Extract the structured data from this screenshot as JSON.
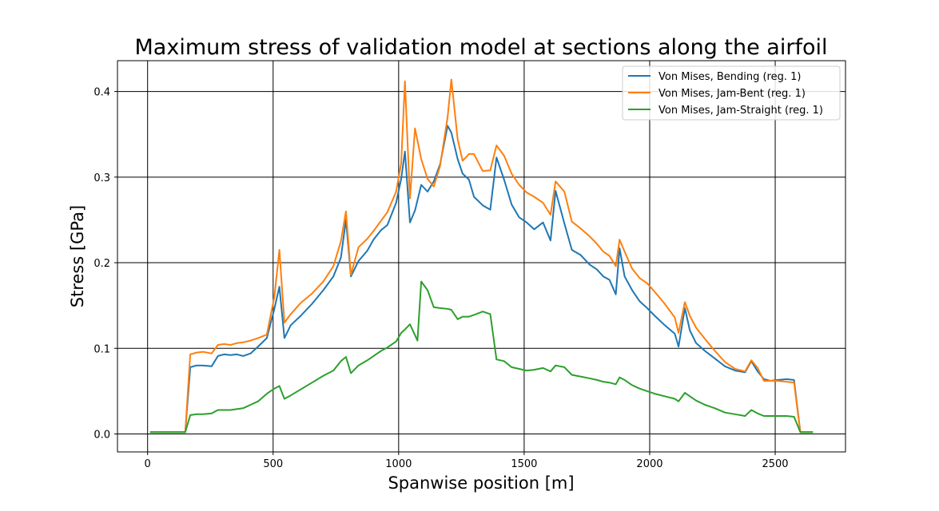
{
  "chart_data": {
    "type": "line",
    "title": "Maximum stress of validation model at sections along the airfoil",
    "xlabel": "Spanwise position [m]",
    "ylabel": "Stress [GPa]",
    "xlim": [
      -120,
      2780
    ],
    "ylim": [
      -0.021,
      0.436
    ],
    "xticks": [
      0,
      500,
      1000,
      1500,
      2000,
      2500
    ],
    "yticks": [
      0.0,
      0.1,
      0.2,
      0.3,
      0.4
    ],
    "xtick_labels": [
      "0",
      "500",
      "1000",
      "1500",
      "2000",
      "2500"
    ],
    "ytick_labels": [
      "0.0",
      "0.1",
      "0.2",
      "0.3",
      "0.4"
    ],
    "grid": true,
    "legend_position": "top-right",
    "series": [
      {
        "name": "Von Mises, Bending (reg. 1)",
        "color": "#1f77b4",
        "x": [
          10,
          60,
          100,
          150,
          170,
          195,
          220,
          255,
          280,
          305,
          330,
          355,
          380,
          410,
          440,
          475,
          505,
          525,
          545,
          570,
          610,
          655,
          700,
          740,
          770,
          790,
          810,
          840,
          875,
          900,
          930,
          955,
          990,
          1010,
          1025,
          1045,
          1065,
          1090,
          1115,
          1140,
          1165,
          1195,
          1210,
          1235,
          1255,
          1280,
          1300,
          1335,
          1365,
          1390,
          1420,
          1450,
          1480,
          1510,
          1540,
          1575,
          1605,
          1625,
          1660,
          1690,
          1725,
          1760,
          1790,
          1815,
          1840,
          1865,
          1880,
          1900,
          1930,
          1960,
          1990,
          2020,
          2060,
          2100,
          2115,
          2140,
          2160,
          2185,
          2220,
          2260,
          2300,
          2340,
          2380,
          2405,
          2430,
          2455,
          2480,
          2510,
          2545,
          2575,
          2600,
          2620,
          2650
        ],
        "values": [
          0.002,
          0.002,
          0.002,
          0.002,
          0.078,
          0.08,
          0.08,
          0.079,
          0.091,
          0.093,
          0.092,
          0.093,
          0.091,
          0.094,
          0.102,
          0.112,
          0.146,
          0.172,
          0.112,
          0.127,
          0.138,
          0.152,
          0.168,
          0.184,
          0.206,
          0.25,
          0.184,
          0.202,
          0.214,
          0.227,
          0.238,
          0.244,
          0.27,
          0.298,
          0.33,
          0.247,
          0.261,
          0.291,
          0.283,
          0.295,
          0.315,
          0.36,
          0.352,
          0.321,
          0.304,
          0.297,
          0.277,
          0.267,
          0.262,
          0.323,
          0.297,
          0.268,
          0.253,
          0.247,
          0.239,
          0.247,
          0.226,
          0.284,
          0.246,
          0.215,
          0.209,
          0.198,
          0.192,
          0.184,
          0.18,
          0.163,
          0.217,
          0.184,
          0.168,
          0.155,
          0.147,
          0.138,
          0.127,
          0.117,
          0.102,
          0.147,
          0.121,
          0.106,
          0.097,
          0.088,
          0.079,
          0.074,
          0.072,
          0.085,
          0.073,
          0.064,
          0.062,
          0.063,
          0.064,
          0.063,
          0.002,
          0.002,
          0.002
        ]
      },
      {
        "name": "Von Mises, Jam-Bent (reg. 1)",
        "color": "#ff7f0e",
        "x": [
          10,
          60,
          100,
          150,
          170,
          195,
          220,
          255,
          280,
          305,
          330,
          355,
          380,
          410,
          440,
          475,
          505,
          525,
          545,
          570,
          610,
          655,
          700,
          740,
          770,
          790,
          810,
          840,
          875,
          900,
          930,
          955,
          990,
          1010,
          1025,
          1045,
          1065,
          1090,
          1115,
          1140,
          1165,
          1195,
          1210,
          1235,
          1255,
          1280,
          1300,
          1335,
          1365,
          1390,
          1420,
          1450,
          1480,
          1510,
          1540,
          1575,
          1605,
          1625,
          1660,
          1690,
          1725,
          1760,
          1790,
          1815,
          1840,
          1865,
          1880,
          1900,
          1930,
          1960,
          1990,
          2020,
          2060,
          2100,
          2115,
          2140,
          2160,
          2185,
          2220,
          2260,
          2300,
          2340,
          2380,
          2405,
          2430,
          2455,
          2480,
          2510,
          2545,
          2575,
          2600,
          2620,
          2650
        ],
        "values": [
          0.002,
          0.002,
          0.002,
          0.002,
          0.093,
          0.095,
          0.096,
          0.094,
          0.104,
          0.105,
          0.104,
          0.106,
          0.107,
          0.109,
          0.112,
          0.116,
          0.16,
          0.215,
          0.13,
          0.14,
          0.153,
          0.164,
          0.178,
          0.196,
          0.225,
          0.26,
          0.186,
          0.218,
          0.228,
          0.237,
          0.249,
          0.259,
          0.283,
          0.316,
          0.412,
          0.275,
          0.357,
          0.321,
          0.298,
          0.289,
          0.313,
          0.37,
          0.414,
          0.344,
          0.319,
          0.327,
          0.327,
          0.307,
          0.308,
          0.337,
          0.325,
          0.304,
          0.291,
          0.282,
          0.277,
          0.27,
          0.256,
          0.295,
          0.283,
          0.248,
          0.24,
          0.231,
          0.222,
          0.213,
          0.208,
          0.196,
          0.227,
          0.213,
          0.193,
          0.182,
          0.176,
          0.166,
          0.152,
          0.136,
          0.118,
          0.154,
          0.138,
          0.124,
          0.111,
          0.097,
          0.084,
          0.076,
          0.073,
          0.086,
          0.077,
          0.062,
          0.062,
          0.062,
          0.061,
          0.06,
          0.002,
          0.002,
          0.002
        ]
      },
      {
        "name": "Von Mises, Jam-Straight (reg. 1)",
        "color": "#2ca02c",
        "x": [
          10,
          60,
          100,
          150,
          170,
          195,
          220,
          255,
          280,
          305,
          330,
          355,
          380,
          410,
          440,
          475,
          505,
          525,
          545,
          570,
          610,
          655,
          700,
          740,
          770,
          790,
          810,
          840,
          875,
          900,
          930,
          955,
          990,
          1010,
          1025,
          1045,
          1075,
          1090,
          1115,
          1140,
          1165,
          1195,
          1210,
          1235,
          1255,
          1280,
          1300,
          1335,
          1365,
          1390,
          1420,
          1450,
          1480,
          1510,
          1540,
          1575,
          1605,
          1625,
          1660,
          1690,
          1725,
          1760,
          1790,
          1815,
          1840,
          1865,
          1880,
          1900,
          1930,
          1960,
          1990,
          2020,
          2060,
          2100,
          2115,
          2140,
          2160,
          2185,
          2220,
          2260,
          2300,
          2340,
          2380,
          2405,
          2430,
          2455,
          2480,
          2510,
          2545,
          2575,
          2600,
          2620,
          2650
        ],
        "values": [
          0.002,
          0.002,
          0.002,
          0.002,
          0.022,
          0.023,
          0.023,
          0.024,
          0.028,
          0.028,
          0.028,
          0.029,
          0.03,
          0.034,
          0.038,
          0.047,
          0.053,
          0.056,
          0.041,
          0.045,
          0.052,
          0.06,
          0.068,
          0.074,
          0.085,
          0.09,
          0.071,
          0.08,
          0.086,
          0.091,
          0.097,
          0.101,
          0.108,
          0.118,
          0.122,
          0.128,
          0.109,
          0.178,
          0.168,
          0.148,
          0.147,
          0.146,
          0.145,
          0.134,
          0.137,
          0.137,
          0.139,
          0.143,
          0.14,
          0.087,
          0.085,
          0.078,
          0.076,
          0.074,
          0.075,
          0.077,
          0.073,
          0.08,
          0.078,
          0.069,
          0.067,
          0.065,
          0.063,
          0.061,
          0.06,
          0.058,
          0.066,
          0.063,
          0.057,
          0.053,
          0.05,
          0.047,
          0.044,
          0.041,
          0.038,
          0.048,
          0.044,
          0.039,
          0.034,
          0.03,
          0.025,
          0.023,
          0.021,
          0.028,
          0.024,
          0.021,
          0.021,
          0.021,
          0.021,
          0.02,
          0.002,
          0.002,
          0.002
        ]
      }
    ]
  }
}
